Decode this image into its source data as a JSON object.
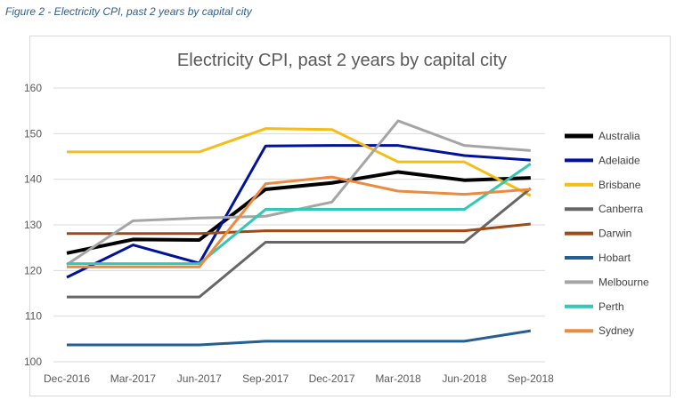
{
  "caption": "Figure 2 - Electricity CPI, past 2 years by capital city",
  "chart_data": {
    "type": "line",
    "title": "Electricity CPI, past 2 years by capital city",
    "xlabel": "",
    "ylabel": "",
    "categories": [
      "Dec-2016",
      "Mar-2017",
      "Jun-2017",
      "Sep-2017",
      "Dec-2017",
      "Mar-2018",
      "Jun-2018",
      "Sep-2018"
    ],
    "ylim": [
      100,
      160
    ],
    "yticks": [
      100,
      110,
      120,
      130,
      140,
      150,
      160
    ],
    "grid": true,
    "legend": "right",
    "series": [
      {
        "name": "Australia",
        "color": "#000000",
        "width": 4,
        "values": [
          123.8,
          126.8,
          126.7,
          137.8,
          139.2,
          141.6,
          139.8,
          140.3
        ]
      },
      {
        "name": "Adelaide",
        "color": "#00129a",
        "width": 3,
        "values": [
          118.5,
          125.6,
          121.6,
          147.3,
          147.4,
          147.4,
          145.2,
          144.2
        ]
      },
      {
        "name": "Brisbane",
        "color": "#f5bd18",
        "width": 3,
        "values": [
          146.0,
          146.0,
          146.0,
          151.1,
          150.9,
          143.8,
          143.8,
          136.4
        ]
      },
      {
        "name": "Canberra",
        "color": "#666666",
        "width": 3,
        "values": [
          114.2,
          114.2,
          114.2,
          126.2,
          126.2,
          126.2,
          126.2,
          138.0
        ]
      },
      {
        "name": "Darwin",
        "color": "#9e4a12",
        "width": 3,
        "values": [
          128.1,
          128.1,
          128.1,
          128.7,
          128.7,
          128.7,
          128.7,
          130.2
        ]
      },
      {
        "name": "Hobart",
        "color": "#255e91",
        "width": 3,
        "values": [
          103.7,
          103.7,
          103.7,
          104.5,
          104.5,
          104.5,
          104.5,
          106.8
        ]
      },
      {
        "name": "Melbourne",
        "color": "#a5a5a5",
        "width": 3,
        "values": [
          121.3,
          130.9,
          131.5,
          131.9,
          135.0,
          152.8,
          147.4,
          146.3
        ]
      },
      {
        "name": "Perth",
        "color": "#33c7b6",
        "width": 3,
        "values": [
          121.5,
          121.5,
          121.5,
          133.4,
          133.4,
          133.4,
          133.4,
          143.4
        ]
      },
      {
        "name": "Sydney",
        "color": "#ed8a40",
        "width": 3,
        "values": [
          120.8,
          120.8,
          120.8,
          139.0,
          140.5,
          137.4,
          136.7,
          137.8
        ]
      }
    ]
  }
}
